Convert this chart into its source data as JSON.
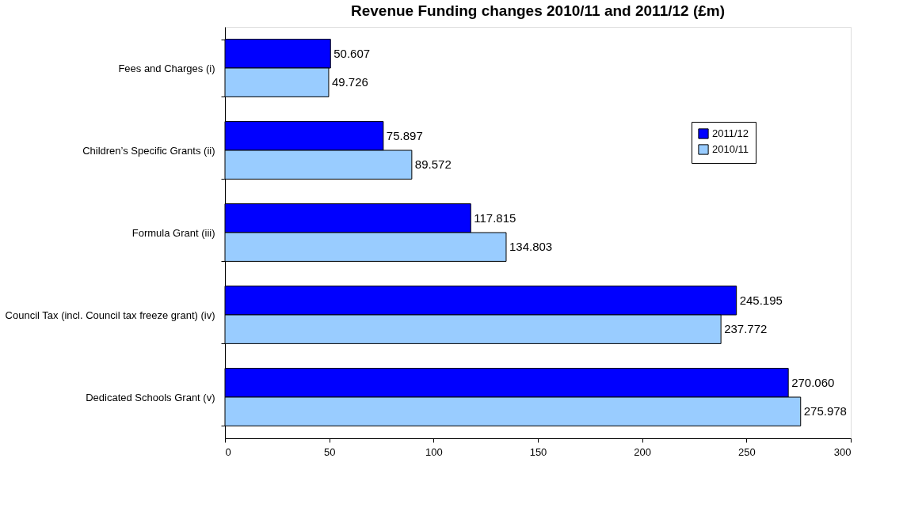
{
  "chart_data": {
    "type": "bar",
    "orientation": "horizontal",
    "title": "Revenue Funding changes 2010/11 and 2011/12 (£m)",
    "categories": [
      "Fees and Charges (i)",
      "Children’s Specific Grants (ii)",
      "Formula Grant (iii)",
      "Council Tax (incl. Council tax freeze grant) (iv)",
      "Dedicated Schools Grant (v)"
    ],
    "series": [
      {
        "name": "2011/12",
        "color": "#0000ff",
        "values": [
          50.607,
          75.897,
          117.815,
          245.195,
          270.06
        ],
        "value_labels": [
          "50.607",
          "75.897",
          "117.815",
          "245.195",
          "270.060"
        ]
      },
      {
        "name": "2010/11",
        "color": "#99ccff",
        "values": [
          49.726,
          89.572,
          134.803,
          237.772,
          275.978
        ],
        "value_labels": [
          "49.726",
          "89.572",
          "134.803",
          "237.772",
          "275.978"
        ]
      }
    ],
    "xlim": [
      0,
      300
    ],
    "xticks": [
      0,
      50,
      100,
      150,
      200,
      250,
      300
    ],
    "grid": false,
    "legend": "top right"
  }
}
